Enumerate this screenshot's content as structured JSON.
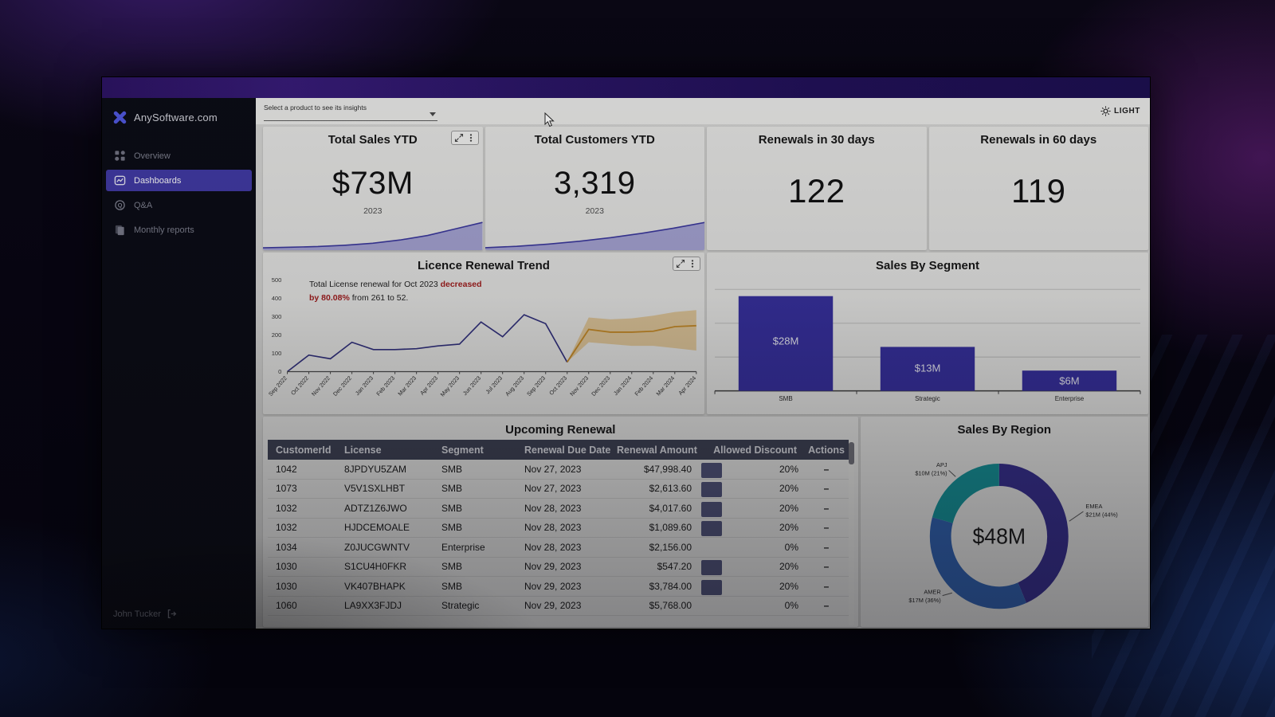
{
  "brand": {
    "name": "AnySoftware.com"
  },
  "sidebar": {
    "items": [
      {
        "label": "Overview"
      },
      {
        "label": "Dashboards"
      },
      {
        "label": "Q&A"
      },
      {
        "label": "Monthly reports"
      }
    ],
    "user": "John Tucker"
  },
  "toolbar": {
    "product_select_label": "Select a product to see its insights",
    "theme_toggle_label": "LIGHT"
  },
  "kpis": [
    {
      "title": "Total Sales YTD",
      "value": "$73M",
      "period": "2023",
      "sparkline": [
        1,
        2,
        3,
        5,
        8,
        13,
        20,
        30,
        40
      ]
    },
    {
      "title": "Total Customers YTD",
      "value": "3,319",
      "period": "2023",
      "sparkline": [
        1,
        3,
        6,
        10,
        15,
        21,
        28,
        36
      ]
    },
    {
      "title": "Renewals in 30 days",
      "value": "122"
    },
    {
      "title": "Renewals in 60 days",
      "value": "119"
    }
  ],
  "chart_data": [
    {
      "type": "line",
      "title": "Licence Renewal Trend",
      "annotation": {
        "part1": "Total License renewal for Oct 2023 ",
        "highlight1": "decreased",
        "highlight2": "by 80.08%",
        "part2": " from 261 to 52."
      },
      "x": [
        "Sep 2022",
        "Oct 2022",
        "Nov 2022",
        "Dec 2022",
        "Jan 2023",
        "Feb 2023",
        "Mar 2023",
        "Apr 2023",
        "May 2023",
        "Jun 2023",
        "Jul 2023",
        "Aug 2023",
        "Sep 2023",
        "Oct 2023",
        "Nov 2023",
        "Dec 2023",
        "Jan 2024",
        "Feb 2024",
        "Mar 2024",
        "Apr 2024"
      ],
      "ylim": [
        0,
        500
      ],
      "yticks": [
        0,
        100,
        200,
        300,
        400,
        500
      ],
      "series": [
        {
          "name": "Actual",
          "values": [
            0,
            90,
            70,
            160,
            120,
            120,
            125,
            140,
            150,
            270,
            190,
            310,
            261,
            52,
            null,
            null,
            null,
            null,
            null,
            null
          ]
        },
        {
          "name": "Forecast",
          "values": [
            null,
            null,
            null,
            null,
            null,
            null,
            null,
            null,
            null,
            null,
            null,
            null,
            null,
            52,
            230,
            215,
            215,
            220,
            245,
            250
          ]
        },
        {
          "name": "Forecast upper",
          "values": [
            null,
            null,
            null,
            null,
            null,
            null,
            null,
            null,
            null,
            null,
            null,
            null,
            null,
            52,
            295,
            285,
            290,
            305,
            325,
            335
          ]
        },
        {
          "name": "Forecast lower",
          "values": [
            null,
            null,
            null,
            null,
            null,
            null,
            null,
            null,
            null,
            null,
            null,
            null,
            null,
            52,
            160,
            150,
            140,
            140,
            128,
            115
          ]
        }
      ]
    },
    {
      "type": "bar",
      "title": "Sales By Segment",
      "categories": [
        "SMB",
        "Strategic",
        "Enterprise"
      ],
      "values": [
        28,
        13,
        6
      ],
      "labels": [
        "$28M",
        "$13M",
        "$6M"
      ],
      "ylim": [
        0,
        30
      ],
      "bar_color": "#37309f"
    },
    {
      "type": "pie",
      "title": "Sales By Region",
      "center_label": "$48M",
      "segments": [
        {
          "name": "EMEA",
          "label": "$21M (44%)",
          "value": 44,
          "color": "#38308f"
        },
        {
          "name": "AMER",
          "label": "$17M (36%)",
          "value": 36,
          "color": "#3263b1"
        },
        {
          "name": "APJ",
          "label": "$10M (21%)",
          "value": 21,
          "color": "#169399"
        }
      ]
    }
  ],
  "table": {
    "title": "Upcoming Renewal",
    "columns": [
      "CustomerId",
      "License",
      "Segment",
      "Renewal Due Date",
      "Renewal Amount",
      "Allowed Discount",
      "Actions"
    ],
    "rows": [
      [
        "1042",
        "8JPDYU5ZAM",
        "SMB",
        "Nov 27, 2023",
        "$47,998.40",
        "20%",
        "–"
      ],
      [
        "1073",
        "V5V1SXLHBT",
        "SMB",
        "Nov 27, 2023",
        "$2,613.60",
        "20%",
        "–"
      ],
      [
        "1032",
        "ADTZ1Z6JWO",
        "SMB",
        "Nov 28, 2023",
        "$4,017.60",
        "20%",
        "–"
      ],
      [
        "1032",
        "HJDCEMOALE",
        "SMB",
        "Nov 28, 2023",
        "$1,089.60",
        "20%",
        "–"
      ],
      [
        "1034",
        "Z0JUCGWNTV",
        "Enterprise",
        "Nov 28, 2023",
        "$2,156.00",
        "0%",
        "–"
      ],
      [
        "1030",
        "S1CU4H0FKR",
        "SMB",
        "Nov 29, 2023",
        "$547.20",
        "20%",
        "–"
      ],
      [
        "1030",
        "VK407BHAPK",
        "SMB",
        "Nov 29, 2023",
        "$3,784.00",
        "20%",
        "–"
      ],
      [
        "1060",
        "LA9XX3FJDJ",
        "Strategic",
        "Nov 29, 2023",
        "$5,768.00",
        "0%",
        "–"
      ]
    ]
  }
}
